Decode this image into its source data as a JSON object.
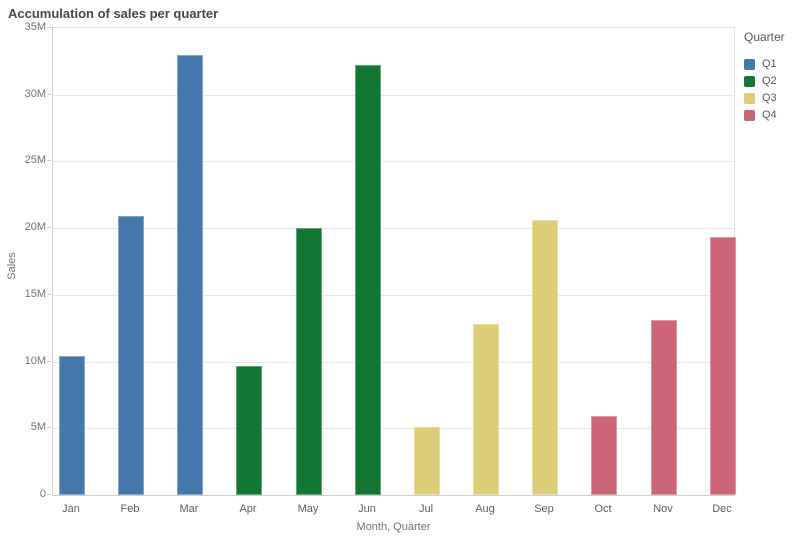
{
  "title": "Accumulation of sales per quarter",
  "colors": {
    "q1": "#4477aa",
    "q2": "#117733",
    "q3": "#ddcc77",
    "q4": "#cc6677",
    "gridline": "#e8e8e8",
    "axis_line": "#d2d2d2",
    "tick_label_text": "#737373",
    "title_text": "#474747",
    "legend_text": "#595959"
  },
  "legend": {
    "title": "Quarter",
    "items": [
      {
        "label": "Q1",
        "color": "#4477aa"
      },
      {
        "label": "Q2",
        "color": "#117733"
      },
      {
        "label": "Q3",
        "color": "#ddcc77"
      },
      {
        "label": "Q4",
        "color": "#cc6677"
      }
    ]
  },
  "chart_data": {
    "type": "bar",
    "title": "Accumulation of sales per quarter",
    "categories": [
      "Jan",
      "Feb",
      "Mar",
      "Apr",
      "May",
      "Jun",
      "Jul",
      "Aug",
      "Sep",
      "Oct",
      "Nov",
      "Dec"
    ],
    "values": [
      10400000,
      20900000,
      33000000,
      9700000,
      20000000,
      32200000,
      5100000,
      12800000,
      20600000,
      5900000,
      13100000,
      19300000
    ],
    "quarters": [
      "Q1",
      "Q1",
      "Q1",
      "Q2",
      "Q2",
      "Q2",
      "Q3",
      "Q3",
      "Q3",
      "Q4",
      "Q4",
      "Q4"
    ],
    "xlabel": "Month, Quarter",
    "ylabel": "Sales",
    "ylim": [
      0,
      35000000
    ],
    "yticks": [
      "0",
      "5M",
      "10M",
      "15M",
      "20M",
      "25M",
      "30M",
      "35M"
    ],
    "grid": true,
    "legend_position": "top-right"
  }
}
